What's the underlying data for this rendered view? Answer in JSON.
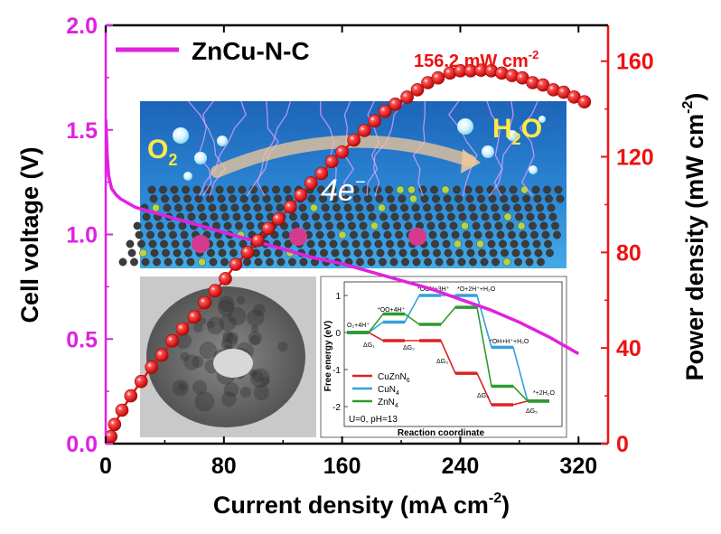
{
  "chart_data": {
    "type": "line",
    "xlabel": "Current density (mA cm",
    "xlabel_sup": "-2",
    "xlabel_end": ")",
    "ylabel_left": "Cell voltage (V)",
    "ylabel_right": "Power density (mW cm",
    "ylabel_right_sup": "-2",
    "ylabel_right_end": ")",
    "xlim": [
      0,
      340
    ],
    "ylim_left": [
      0,
      2.0
    ],
    "ylim_right": [
      0,
      175
    ],
    "x_ticks": [
      "0",
      "80",
      "160",
      "240",
      "320"
    ],
    "y_left_ticks": [
      "0.0",
      "0.5",
      "1.0",
      "1.5",
      "2.0"
    ],
    "y_right_ticks": [
      "0",
      "40",
      "80",
      "120",
      "160"
    ],
    "legend": {
      "label": "ZnCu-N-C",
      "position": "top-left"
    },
    "annotation": {
      "text": "156.2 mW cm",
      "sup": "-2"
    },
    "colors": {
      "voltage": "#e021e0",
      "power": "#ee1111",
      "left_axis": "#e021e0",
      "right_axis": "#ee1111"
    },
    "series": [
      {
        "name": "ZnCu-N-C",
        "axis": "left",
        "x": [
          0,
          0.5,
          1,
          2,
          4,
          7,
          10,
          20,
          40,
          60,
          80,
          100,
          120,
          140,
          160,
          180,
          200,
          220,
          240,
          260,
          280,
          300,
          320
        ],
        "y": [
          1.55,
          1.48,
          1.38,
          1.28,
          1.22,
          1.19,
          1.17,
          1.13,
          1.09,
          1.05,
          1.01,
          0.97,
          0.93,
          0.89,
          0.86,
          0.82,
          0.78,
          0.74,
          0.69,
          0.64,
          0.58,
          0.51,
          0.43
        ]
      },
      {
        "name": "power density",
        "axis": "right",
        "x": [
          1.5,
          3.5,
          6,
          11,
          17,
          24,
          31,
          38,
          45,
          52,
          60,
          67,
          74,
          81,
          88,
          96,
          103,
          110,
          117,
          125,
          132,
          139,
          146,
          153,
          160,
          168,
          175,
          182,
          189,
          196,
          204,
          211,
          218,
          225,
          233,
          240,
          247,
          254,
          261,
          268,
          275,
          282,
          289,
          296,
          303,
          310,
          317,
          324
        ],
        "y": [
          1,
          3,
          8,
          14,
          20,
          26,
          32,
          37,
          43,
          48,
          53,
          59,
          64,
          69,
          75,
          80,
          85,
          90,
          94,
          99,
          104,
          109,
          113,
          118,
          122,
          127,
          131,
          135,
          139,
          142,
          145,
          148,
          151,
          153,
          155,
          156,
          156,
          156.2,
          156,
          155,
          154,
          153,
          151,
          150,
          148,
          147,
          145,
          143
        ]
      }
    ],
    "inset_bottom": {
      "title": "",
      "xlabel": "Reaction coordinate",
      "ylabel": "Free energy (eV)",
      "y_ticks": [
        "1",
        "0",
        "-1",
        "-2"
      ],
      "condition": "U=0, pH=13",
      "legend": [
        "CuZnN",
        "CuN",
        "ZnN"
      ],
      "legend_subs": [
        "6",
        "4",
        "4"
      ],
      "legend_colors": [
        "#dd2222",
        "#33a0dd",
        "#2e9a2e"
      ],
      "state_labels": [
        "O₂+4H⁺",
        "*OO+4H⁺",
        "*OOH+3H⁺",
        "*O+2H⁺+H₂O",
        "*OH+H⁺+H₂O",
        "*+2H₂O"
      ],
      "step_labels": [
        "ΔG₁",
        "ΔG₂",
        "ΔG₃",
        "ΔG₄",
        "ΔG₅"
      ],
      "levels": {
        "CuZnN6": [
          0,
          -0.22,
          -0.22,
          -1.1,
          -1.95,
          -1.85
        ],
        "CuN4": [
          0,
          0.28,
          1.0,
          1.0,
          -0.4,
          -1.85
        ],
        "ZnN4": [
          0,
          0.5,
          0.22,
          0.68,
          -1.45,
          -1.85
        ]
      }
    },
    "inset_top": {
      "reactant": "O",
      "reactant_sub": "2",
      "product": "H",
      "product_sub": "2",
      "product_end": "O",
      "electron_label": "4e",
      "electron_sup": "−"
    }
  }
}
